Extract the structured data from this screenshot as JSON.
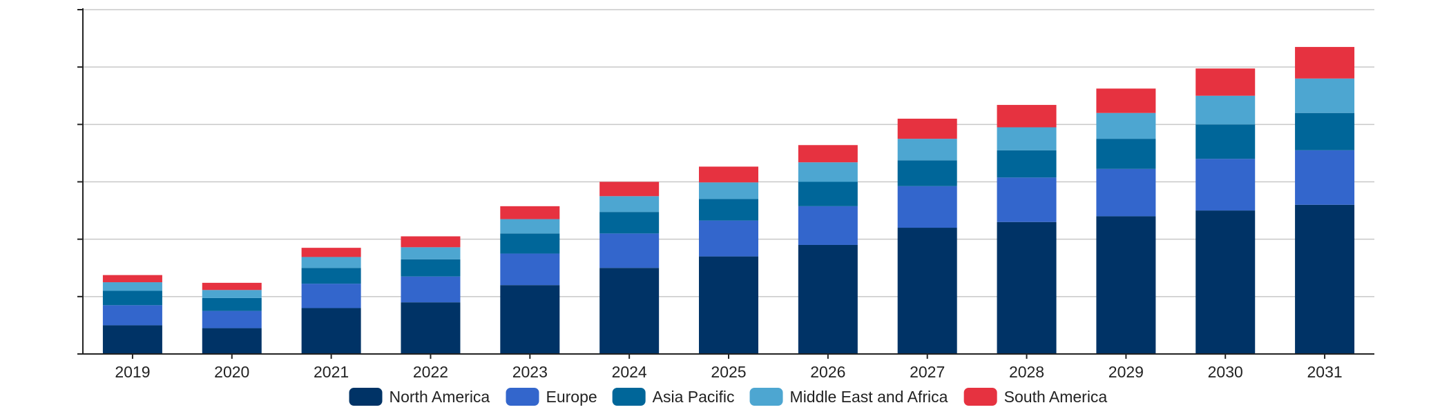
{
  "chart_data": {
    "type": "bar",
    "stacked": true,
    "categories": [
      "2019",
      "2020",
      "2021",
      "2022",
      "2023",
      "2024",
      "2025",
      "2026",
      "2027",
      "2028",
      "2029",
      "2030",
      "2031"
    ],
    "series": [
      {
        "name": "North America",
        "color": "#003366",
        "values": [
          1.0,
          0.9,
          1.6,
          1.8,
          2.4,
          3.0,
          3.4,
          3.8,
          4.4,
          4.6,
          4.8,
          5.0,
          5.2
        ]
      },
      {
        "name": "Europe",
        "color": "#3366cc",
        "values": [
          0.7,
          0.6,
          0.85,
          0.9,
          1.1,
          1.2,
          1.25,
          1.35,
          1.45,
          1.55,
          1.65,
          1.8,
          1.9
        ]
      },
      {
        "name": "Asia Pacific",
        "color": "#006699",
        "values": [
          0.5,
          0.45,
          0.55,
          0.6,
          0.7,
          0.75,
          0.75,
          0.85,
          0.9,
          0.95,
          1.05,
          1.2,
          1.3
        ]
      },
      {
        "name": "Middle East and Africa",
        "color": "#4da6d1",
        "values": [
          0.3,
          0.28,
          0.38,
          0.42,
          0.5,
          0.55,
          0.58,
          0.68,
          0.75,
          0.8,
          0.9,
          1.0,
          1.2
        ]
      },
      {
        "name": "South America",
        "color": "#e63240",
        "values": [
          0.25,
          0.25,
          0.32,
          0.38,
          0.45,
          0.5,
          0.55,
          0.6,
          0.7,
          0.78,
          0.85,
          0.95,
          1.1
        ]
      }
    ],
    "ylim": [
      0,
      12
    ],
    "yticks": [
      0,
      2,
      4,
      6,
      8,
      10,
      12
    ],
    "ytick_labels_visible": false,
    "grid": true,
    "legend": "bottom"
  }
}
